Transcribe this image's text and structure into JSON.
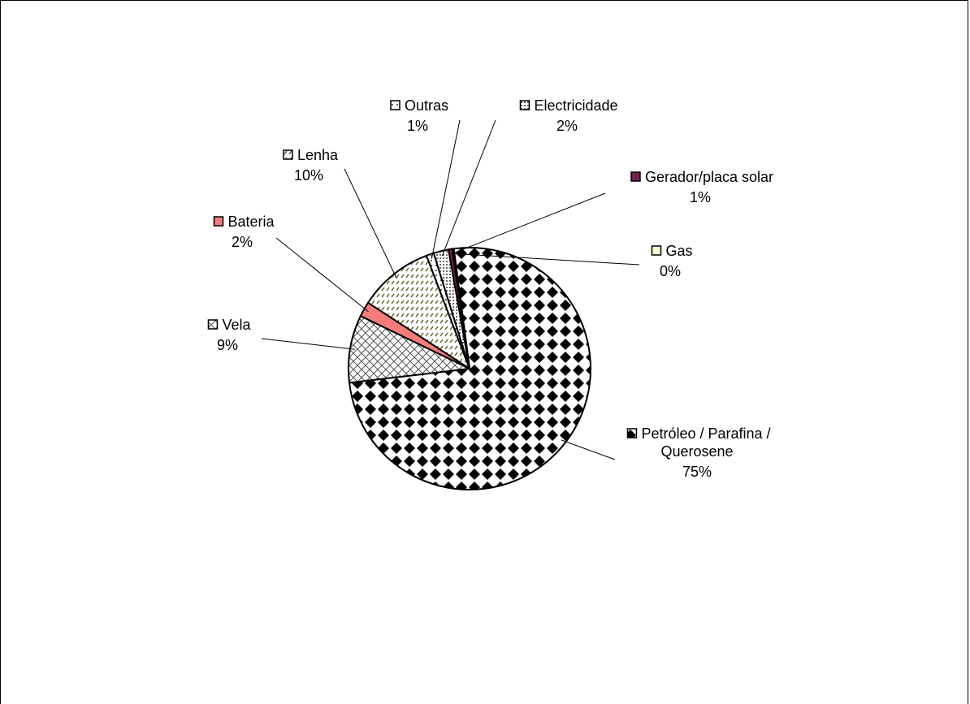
{
  "chart_data": {
    "type": "pie",
    "series": [
      {
        "name": "",
        "slices": [
          {
            "label": "Petróleo / Parafina / Querosene",
            "label_lines": [
              "Petróleo / Parafina /",
              "Querosene"
            ],
            "pct_text": "75%",
            "value": 75,
            "pattern": "diamond",
            "swatch": "#000000"
          },
          {
            "label": "Vela",
            "label_lines": [
              "Vela"
            ],
            "pct_text": "9%",
            "value": 9,
            "pattern": "crosshatch",
            "swatch": "#ffffff"
          },
          {
            "label": "Bateria",
            "label_lines": [
              "Bateria"
            ],
            "pct_text": "2%",
            "value": 2,
            "pattern": "solid",
            "swatch": "#f47c7c"
          },
          {
            "label": "Lenha",
            "label_lines": [
              "Lenha"
            ],
            "pct_text": "10%",
            "value": 10,
            "pattern": "dash",
            "swatch": "#ffffff"
          },
          {
            "label": "Outras",
            "label_lines": [
              "Outras"
            ],
            "pct_text": "1%",
            "value": 1,
            "pattern": "dots-sparse",
            "swatch": "#ffffff"
          },
          {
            "label": "Electricidade",
            "label_lines": [
              "Electricidade"
            ],
            "pct_text": "2%",
            "value": 2,
            "pattern": "dots-dense",
            "swatch": "#ffffff"
          },
          {
            "label": "Gerador/placa solar",
            "label_lines": [
              "Gerador/placa solar"
            ],
            "pct_text": "1%",
            "value": 0.5,
            "pattern": "solid",
            "swatch": "#7a1f4a"
          },
          {
            "label": "Gas",
            "label_lines": [
              "Gas"
            ],
            "pct_text": "0%",
            "value": 0.2,
            "pattern": "solid",
            "swatch": "#ffffcc"
          }
        ]
      }
    ],
    "legend": "data-labels-around-pie"
  }
}
